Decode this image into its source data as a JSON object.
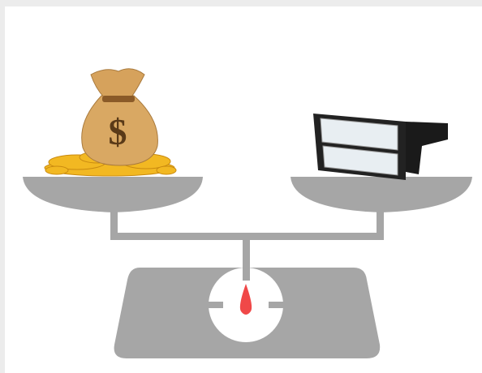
{
  "illustration": {
    "symbol": "$"
  }
}
